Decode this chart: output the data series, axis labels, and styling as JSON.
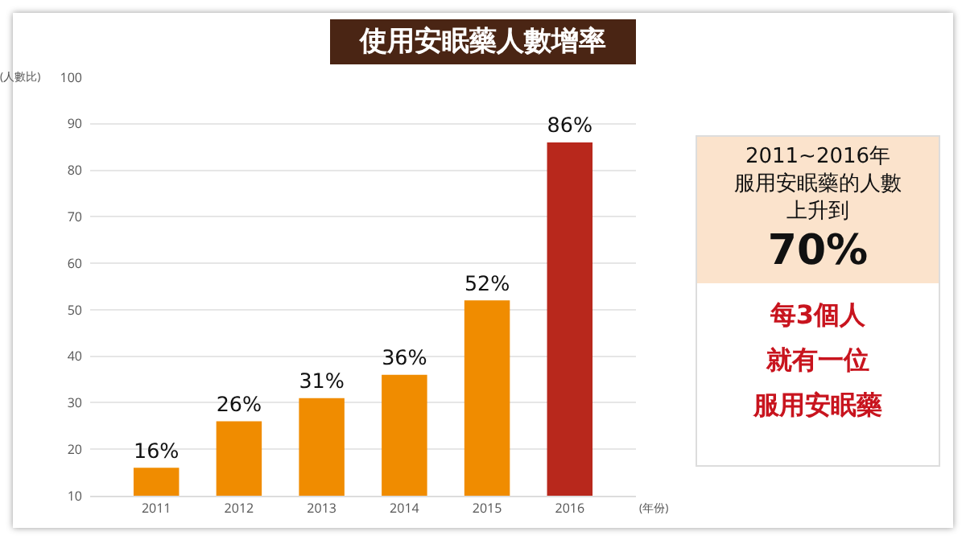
{
  "chart_data": {
    "type": "bar",
    "title": "使用安眠藥人數增率",
    "xlabel": "(年份)",
    "ylabel": "(人數比)",
    "categories": [
      "2011",
      "2012",
      "2013",
      "2014",
      "2015",
      "2016"
    ],
    "values": [
      16,
      26,
      31,
      36,
      52,
      86
    ],
    "value_labels": [
      "16%",
      "26%",
      "31%",
      "36%",
      "52%",
      "86%"
    ],
    "colors": [
      "#f08c00",
      "#f08c00",
      "#f08c00",
      "#f08c00",
      "#f08c00",
      "#b8281c"
    ],
    "ylim": [
      10,
      100
    ],
    "yticks": [
      10,
      20,
      30,
      40,
      50,
      60,
      70,
      80,
      90,
      100
    ],
    "grid": "y",
    "annotations": [
      "2011~2016年",
      "服用安眠藥的人數",
      "上升到",
      "70%",
      "每3個人",
      "就有一位",
      "服用安眠藥"
    ]
  }
}
